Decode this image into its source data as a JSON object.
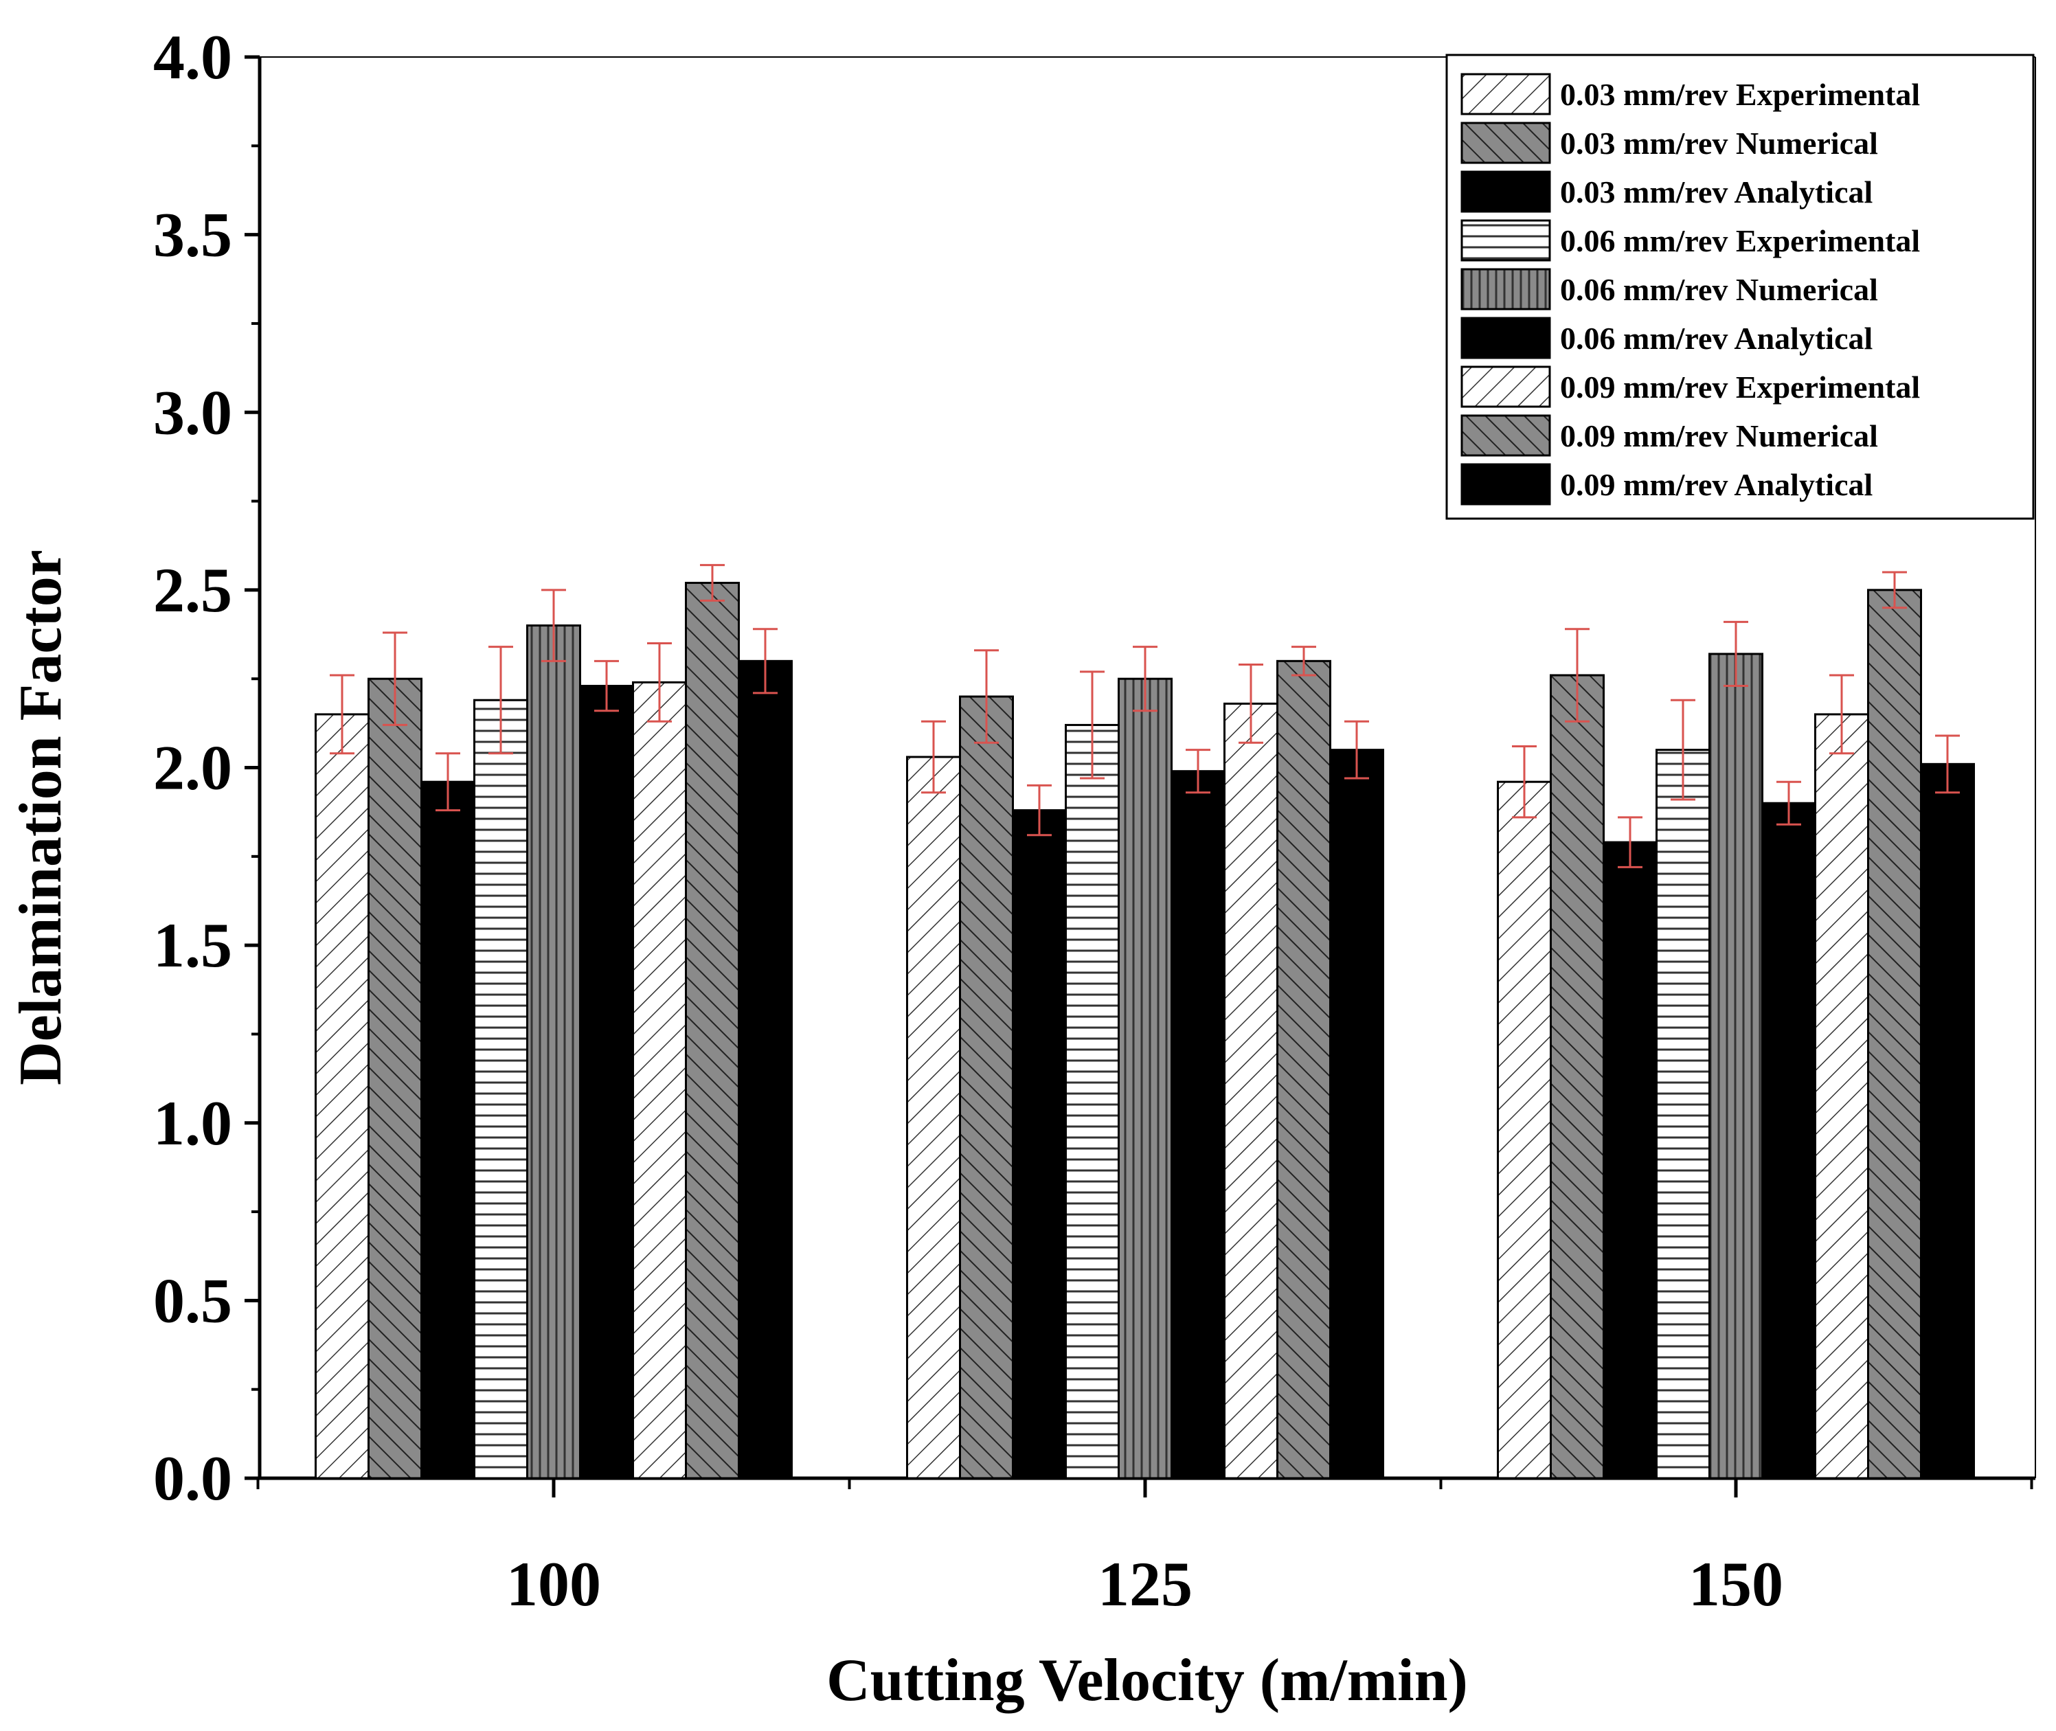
{
  "chart_data": {
    "type": "bar",
    "title": "",
    "xlabel": "Cutting Velocity (m/min)",
    "ylabel": "Delamination Factor",
    "ylim": [
      0,
      4.0
    ],
    "yticks": [
      "0.0",
      "0.5",
      "1.0",
      "1.5",
      "2.0",
      "2.5",
      "3.0",
      "3.5",
      "4.0"
    ],
    "categories": [
      "100",
      "125",
      "150"
    ],
    "legend_position": "top-right",
    "grid": false,
    "series": [
      {
        "name": "0.03 mm/rev Experimental",
        "pattern": "hatch-diag-light",
        "values": [
          2.15,
          2.03,
          1.96
        ],
        "errors": [
          0.11,
          0.1,
          0.1
        ]
      },
      {
        "name": "0.03 mm/rev Numerical",
        "pattern": "hatch-diag-dark",
        "values": [
          2.25,
          2.2,
          2.26
        ],
        "errors": [
          0.13,
          0.13,
          0.13
        ]
      },
      {
        "name": "0.03 mm/rev Analytical",
        "pattern": "solid-black",
        "values": [
          1.96,
          1.88,
          1.79
        ],
        "errors": [
          0.08,
          0.07,
          0.07
        ]
      },
      {
        "name": "0.06 mm/rev Experimental",
        "pattern": "hatch-horizontal",
        "values": [
          2.19,
          2.12,
          2.05
        ],
        "errors": [
          0.15,
          0.15,
          0.14
        ]
      },
      {
        "name": "0.06 mm/rev Numerical",
        "pattern": "hatch-vertical-dark",
        "values": [
          2.4,
          2.25,
          2.32
        ],
        "errors": [
          0.1,
          0.09,
          0.09
        ]
      },
      {
        "name": "0.06 mm/rev Analytical",
        "pattern": "solid-black",
        "values": [
          2.23,
          1.99,
          1.9
        ],
        "errors": [
          0.07,
          0.06,
          0.06
        ]
      },
      {
        "name": "0.09 mm/rev Experimental",
        "pattern": "hatch-diag-light",
        "values": [
          2.24,
          2.18,
          2.15
        ],
        "errors": [
          0.11,
          0.11,
          0.11
        ]
      },
      {
        "name": "0.09 mm/rev Numerical",
        "pattern": "hatch-diag-dark",
        "values": [
          2.52,
          2.3,
          2.5
        ],
        "errors": [
          0.05,
          0.04,
          0.05
        ]
      },
      {
        "name": "0.09 mm/rev Analytical",
        "pattern": "solid-black",
        "values": [
          2.3,
          2.05,
          2.01
        ],
        "errors": [
          0.09,
          0.08,
          0.08
        ]
      }
    ],
    "colors": {
      "bar_edge": "#000000",
      "dark_fill": "#8a8a8a",
      "error_bar": "#d9534f",
      "axis": "#000000"
    }
  }
}
